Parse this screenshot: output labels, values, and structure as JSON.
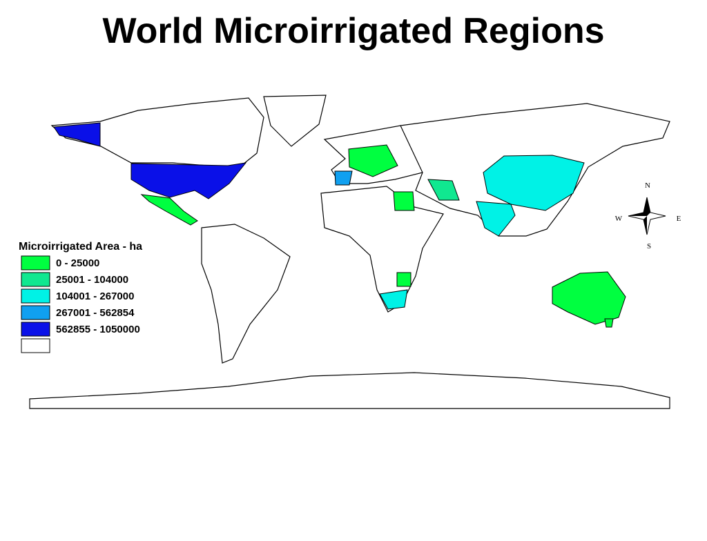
{
  "header": {
    "title": "World Microirrigated Regions"
  },
  "legend": {
    "title": "Microirrigated Area - ha",
    "items": [
      {
        "label": "0 - 25000",
        "color": "#00ff40"
      },
      {
        "label": "25001 - 104000",
        "color": "#10e890"
      },
      {
        "label": "104001 - 267000",
        "color": "#00f2e6"
      },
      {
        "label": "267001 - 562854",
        "color": "#10a0f0"
      },
      {
        "label": "562855 - 1050000",
        "color": "#0a10e8"
      },
      {
        "color": "#ffffff"
      }
    ]
  },
  "compass": {
    "north": "N",
    "south": "S",
    "west": "W",
    "east": "E"
  }
}
